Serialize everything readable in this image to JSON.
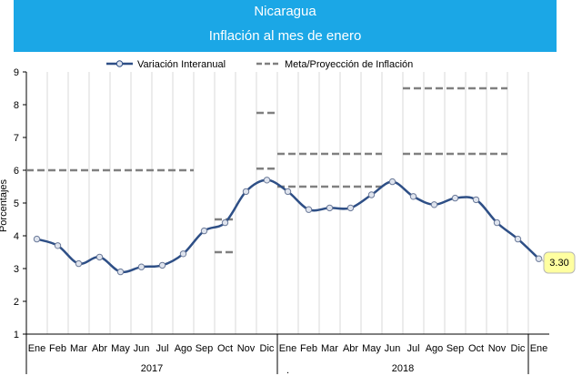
{
  "header": {
    "title": "Nicaragua",
    "subtitle": "Inflación al mes de enero"
  },
  "chart_data": {
    "type": "line",
    "ylabel": "Porcentajes",
    "ylim": [
      1,
      9
    ],
    "yticks": [
      1,
      2,
      3,
      4,
      5,
      6,
      7,
      8,
      9
    ],
    "grid": "vertical",
    "legend_position": "top",
    "categories": [
      "Ene",
      "Feb",
      "Mar",
      "Abr",
      "May",
      "Jun",
      "Jul",
      "Ago",
      "Sep",
      "Oct",
      "Nov",
      "Dic",
      "Ene",
      "Feb",
      "Mar",
      "Abr",
      "May",
      "Jun",
      "Jul",
      "Ago",
      "Sep",
      "Oct",
      "Nov",
      "Dic",
      "Ene"
    ],
    "year_groups": [
      {
        "label": "2017",
        "start": 0,
        "end": 11
      },
      {
        "label": "2018",
        "start": 12,
        "end": 23
      }
    ],
    "stray_mark": ".",
    "series": [
      {
        "name": "Variación Interanual",
        "color": "#2e4f86",
        "values": [
          3.9,
          3.7,
          3.15,
          3.35,
          2.9,
          3.05,
          3.1,
          3.45,
          4.15,
          4.4,
          5.35,
          5.7,
          5.35,
          4.8,
          4.85,
          4.85,
          5.25,
          5.65,
          5.2,
          4.95,
          5.15,
          5.1,
          4.4,
          3.9,
          3.3
        ]
      }
    ],
    "targets": {
      "name": "Meta/Proyección de Inflación",
      "color": "#808080",
      "segments": [
        {
          "x_start": 0,
          "x_end": 8,
          "value": 6.0
        },
        {
          "x_start": 9,
          "x_end": 10,
          "value": 4.5
        },
        {
          "x_start": 9,
          "x_end": 10,
          "value": 3.5
        },
        {
          "x_start": 11,
          "x_end": 12,
          "value": 7.75
        },
        {
          "x_start": 11,
          "x_end": 12,
          "value": 6.05
        },
        {
          "x_start": 12,
          "x_end": 17,
          "value": 6.5
        },
        {
          "x_start": 12,
          "x_end": 17,
          "value": 5.5
        },
        {
          "x_start": 18,
          "x_end": 23,
          "value": 8.5
        },
        {
          "x_start": 18,
          "x_end": 23,
          "value": 6.5
        }
      ]
    },
    "last_value_label": "3.30",
    "callout_color": "#ffffa0"
  }
}
